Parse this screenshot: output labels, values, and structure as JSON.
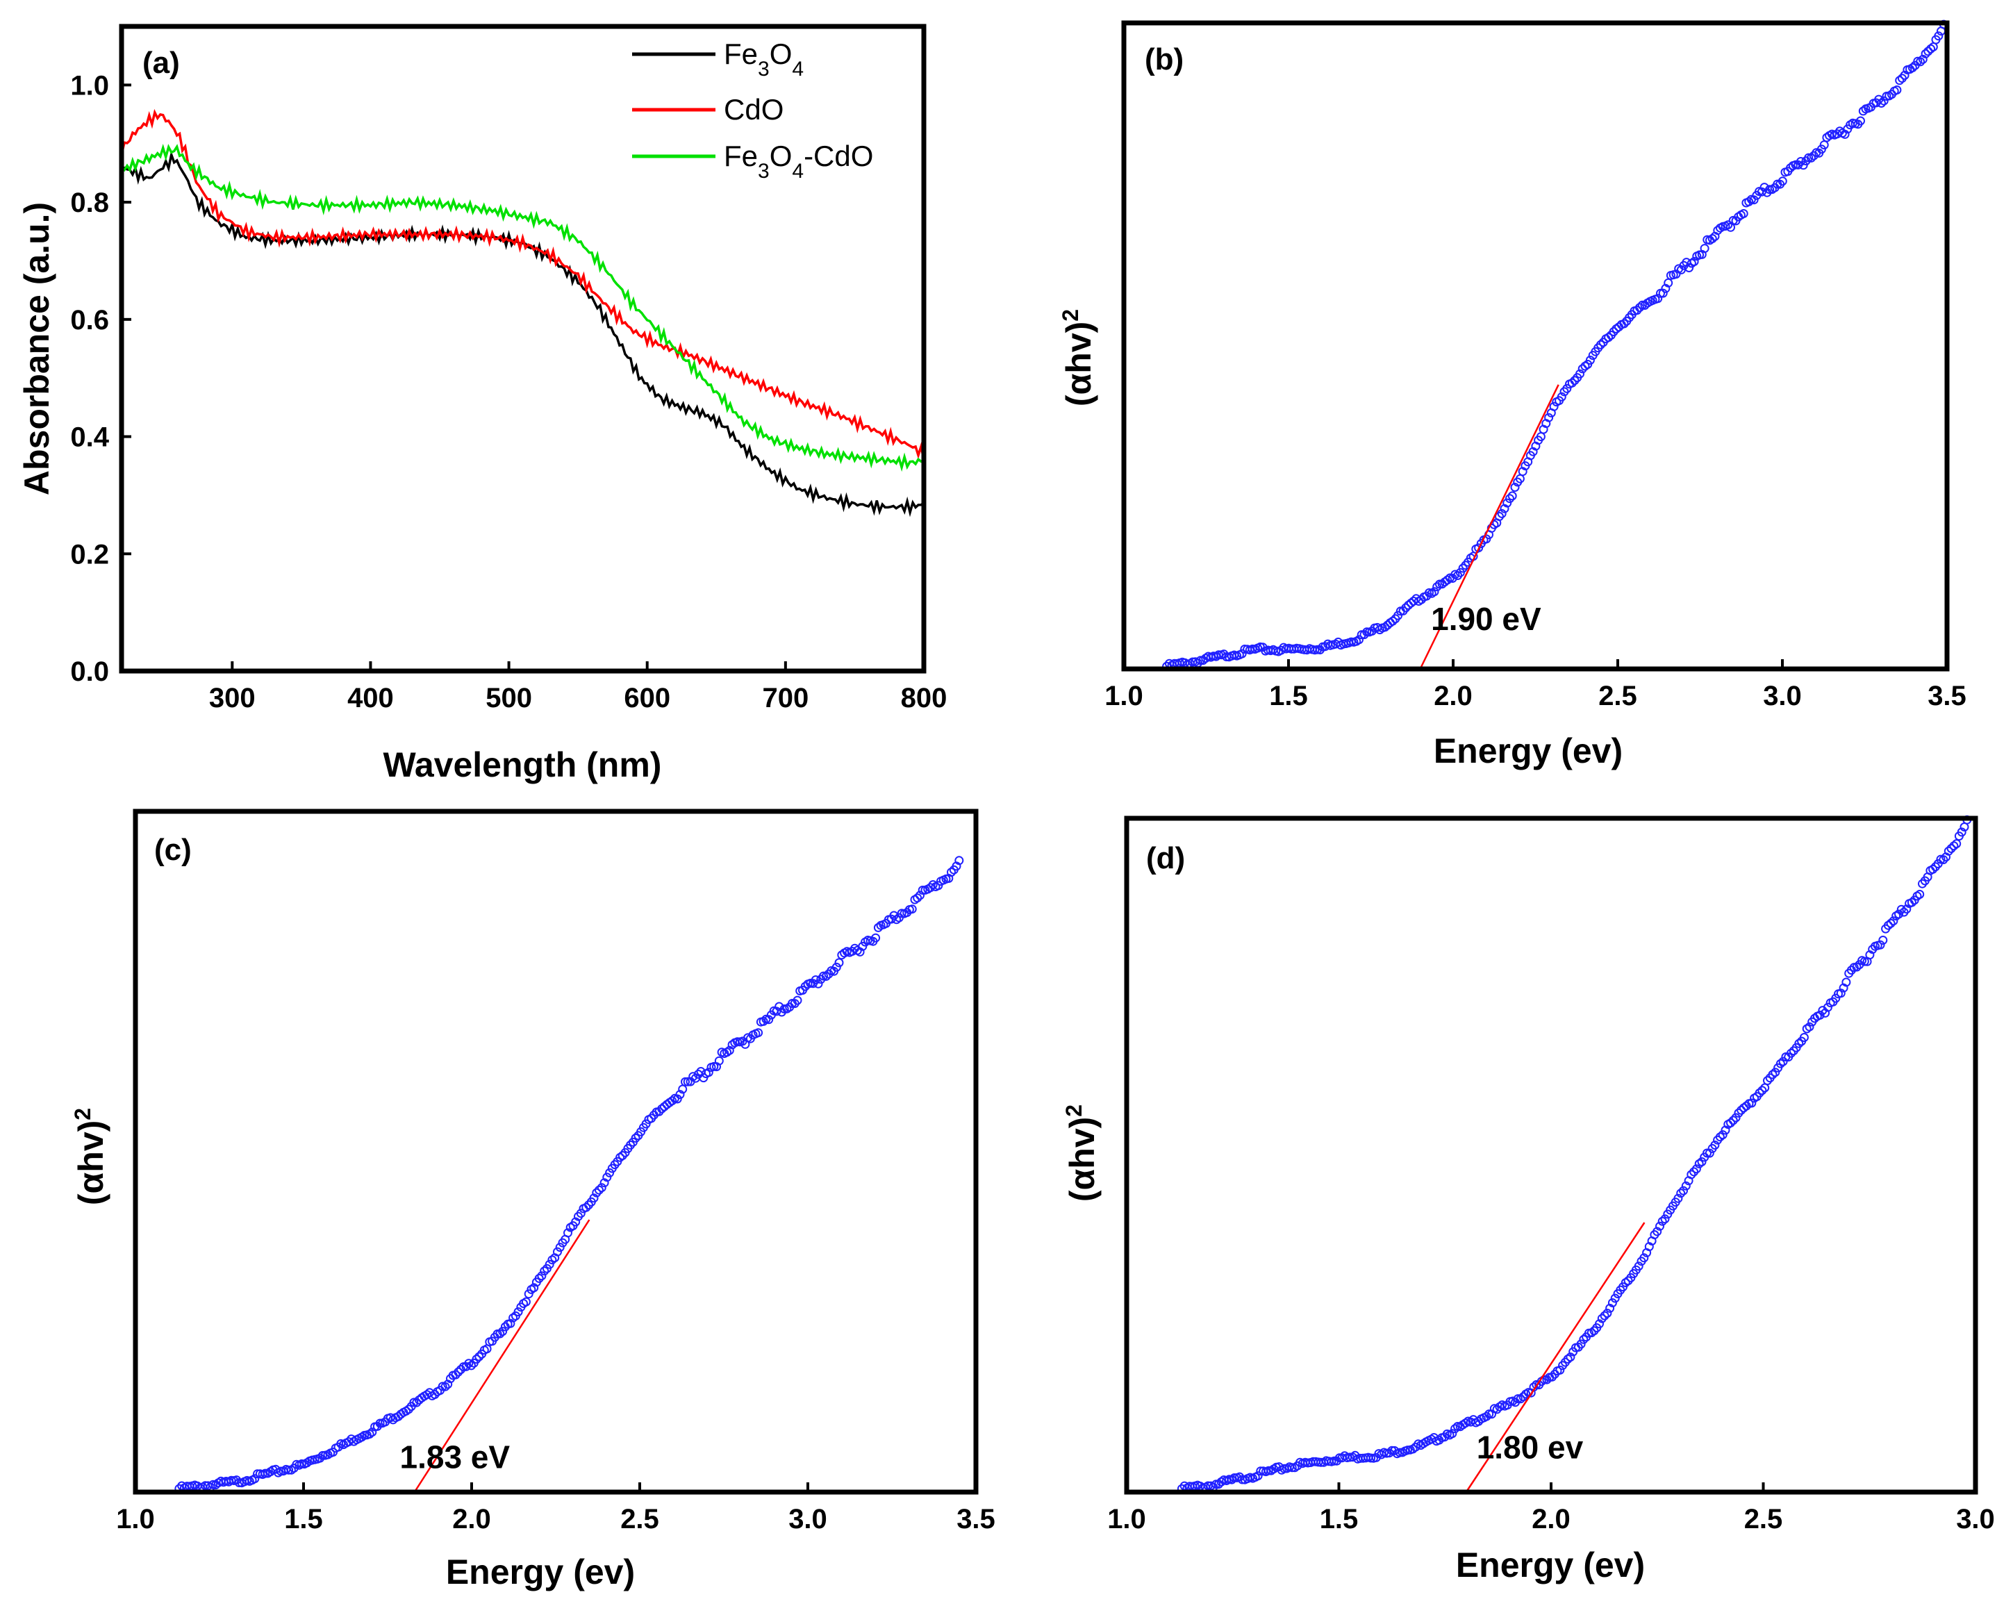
{
  "chart_data": [
    {
      "id": "a",
      "type": "line",
      "panel_label": "(a)",
      "xlabel": "Wavelength (nm)",
      "ylabel": "Absorbance (a.u.)",
      "xlim": [
        220,
        800
      ],
      "ylim": [
        0.0,
        1.1
      ],
      "x_ticks": [
        300,
        400,
        500,
        600,
        700,
        800
      ],
      "y_ticks": [
        0.0,
        0.2,
        0.4,
        0.6,
        0.8,
        1.0
      ],
      "x_tick_labels": [
        "300",
        "400",
        "500",
        "600",
        "700",
        "800"
      ],
      "y_tick_labels": [
        "0.0",
        "0.2",
        "0.4",
        "0.6",
        "0.8",
        "1.0"
      ],
      "legend_position": "top-right",
      "series": [
        {
          "name": "Fe3O4",
          "legend": {
            "base1": "Fe",
            "sub1": "3",
            "base2": "O",
            "sub2": "4",
            "rest": ""
          },
          "color": "#000000",
          "points": [
            [
              220,
              0.86
            ],
            [
              230,
              0.85
            ],
            [
              240,
              0.84
            ],
            [
              250,
              0.86
            ],
            [
              258,
              0.875
            ],
            [
              265,
              0.85
            ],
            [
              275,
              0.8
            ],
            [
              290,
              0.765
            ],
            [
              310,
              0.74
            ],
            [
              330,
              0.735
            ],
            [
              360,
              0.735
            ],
            [
              400,
              0.74
            ],
            [
              430,
              0.745
            ],
            [
              460,
              0.745
            ],
            [
              490,
              0.74
            ],
            [
              510,
              0.73
            ],
            [
              530,
              0.705
            ],
            [
              550,
              0.665
            ],
            [
              565,
              0.62
            ],
            [
              580,
              0.56
            ],
            [
              595,
              0.5
            ],
            [
              610,
              0.465
            ],
            [
              625,
              0.45
            ],
            [
              640,
              0.44
            ],
            [
              655,
              0.42
            ],
            [
              670,
              0.38
            ],
            [
              690,
              0.34
            ],
            [
              710,
              0.31
            ],
            [
              730,
              0.295
            ],
            [
              750,
              0.285
            ],
            [
              770,
              0.28
            ],
            [
              790,
              0.28
            ],
            [
              800,
              0.285
            ]
          ]
        },
        {
          "name": "CdO",
          "legend": {
            "base1": "CdO",
            "sub1": "",
            "base2": "",
            "sub2": "",
            "rest": ""
          },
          "color": "#ff0000",
          "points": [
            [
              220,
              0.89
            ],
            [
              230,
              0.92
            ],
            [
              240,
              0.94
            ],
            [
              248,
              0.95
            ],
            [
              255,
              0.935
            ],
            [
              262,
              0.91
            ],
            [
              275,
              0.83
            ],
            [
              290,
              0.78
            ],
            [
              310,
              0.75
            ],
            [
              330,
              0.74
            ],
            [
              360,
              0.74
            ],
            [
              400,
              0.745
            ],
            [
              430,
              0.745
            ],
            [
              460,
              0.745
            ],
            [
              490,
              0.74
            ],
            [
              510,
              0.73
            ],
            [
              530,
              0.71
            ],
            [
              550,
              0.675
            ],
            [
              570,
              0.625
            ],
            [
              590,
              0.58
            ],
            [
              610,
              0.555
            ],
            [
              630,
              0.54
            ],
            [
              650,
              0.52
            ],
            [
              680,
              0.49
            ],
            [
              710,
              0.46
            ],
            [
              740,
              0.435
            ],
            [
              770,
              0.405
            ],
            [
              790,
              0.385
            ],
            [
              800,
              0.37
            ]
          ]
        },
        {
          "name": "Fe3O4-CdO",
          "legend": {
            "base1": "Fe",
            "sub1": "3",
            "base2": "O",
            "sub2": "4",
            "rest": "-CdO"
          },
          "color": "#00e000",
          "points": [
            [
              220,
              0.855
            ],
            [
              230,
              0.865
            ],
            [
              240,
              0.875
            ],
            [
              250,
              0.885
            ],
            [
              260,
              0.89
            ],
            [
              270,
              0.86
            ],
            [
              290,
              0.825
            ],
            [
              310,
              0.81
            ],
            [
              330,
              0.8
            ],
            [
              360,
              0.795
            ],
            [
              400,
              0.795
            ],
            [
              430,
              0.8
            ],
            [
              460,
              0.795
            ],
            [
              490,
              0.785
            ],
            [
              510,
              0.775
            ],
            [
              530,
              0.765
            ],
            [
              550,
              0.735
            ],
            [
              570,
              0.685
            ],
            [
              590,
              0.625
            ],
            [
              610,
              0.575
            ],
            [
              630,
              0.525
            ],
            [
              650,
              0.475
            ],
            [
              670,
              0.425
            ],
            [
              690,
              0.395
            ],
            [
              710,
              0.38
            ],
            [
              730,
              0.37
            ],
            [
              750,
              0.365
            ],
            [
              770,
              0.36
            ],
            [
              790,
              0.355
            ],
            [
              800,
              0.36
            ]
          ]
        }
      ]
    },
    {
      "id": "b",
      "type": "scatter",
      "panel_label": "(b)",
      "xlabel": "Energy (ev)",
      "ylabel": {
        "base": "(αhv)",
        "sup": "2"
      },
      "xlim": [
        1.0,
        3.5
      ],
      "ylim": [
        0,
        1.0
      ],
      "x_ticks": [
        1.0,
        1.5,
        2.0,
        2.5,
        3.0,
        3.5
      ],
      "x_tick_labels": [
        "1.0",
        "1.5",
        "2.0",
        "2.5",
        "3.0",
        "3.5"
      ],
      "marker_color": "#2020ff",
      "x_range": [
        1.13,
        3.49
      ],
      "curve": [
        [
          1.13,
          0.004
        ],
        [
          1.2,
          0.01
        ],
        [
          1.3,
          0.02
        ],
        [
          1.4,
          0.03
        ],
        [
          1.5,
          0.03
        ],
        [
          1.6,
          0.033
        ],
        [
          1.7,
          0.045
        ],
        [
          1.8,
          0.07
        ],
        [
          1.9,
          0.11
        ],
        [
          2.0,
          0.14
        ],
        [
          2.1,
          0.2
        ],
        [
          2.2,
          0.29
        ],
        [
          2.3,
          0.4
        ],
        [
          2.4,
          0.47
        ],
        [
          2.5,
          0.53
        ],
        [
          2.6,
          0.57
        ],
        [
          2.7,
          0.62
        ],
        [
          2.8,
          0.67
        ],
        [
          2.9,
          0.72
        ],
        [
          3.0,
          0.76
        ],
        [
          3.1,
          0.8
        ],
        [
          3.2,
          0.84
        ],
        [
          3.3,
          0.88
        ],
        [
          3.4,
          0.93
        ],
        [
          3.49,
          0.99
        ]
      ],
      "fit_line": {
        "color": "#ff0000",
        "from": [
          1.9,
          0.0
        ],
        "to": [
          2.32,
          0.44
        ]
      },
      "band_gap_label": "1.90 eV",
      "band_gap_label_anchor": [
        2.1,
        0.06
      ]
    },
    {
      "id": "c",
      "type": "scatter",
      "panel_label": "(c)",
      "xlabel": "Energy (ev)",
      "ylabel": {
        "base": "(αhv)",
        "sup": "2"
      },
      "xlim": [
        1.0,
        3.5
      ],
      "ylim": [
        0,
        1.0
      ],
      "x_ticks": [
        1.0,
        1.5,
        2.0,
        2.5,
        3.0,
        3.5
      ],
      "x_tick_labels": [
        "1.0",
        "1.5",
        "2.0",
        "2.5",
        "3.0",
        "3.5"
      ],
      "marker_color": "#2020ff",
      "x_range": [
        1.13,
        3.45
      ],
      "curve": [
        [
          1.13,
          0.005
        ],
        [
          1.3,
          0.015
        ],
        [
          1.5,
          0.04
        ],
        [
          1.7,
          0.09
        ],
        [
          1.9,
          0.15
        ],
        [
          2.0,
          0.19
        ],
        [
          2.1,
          0.24
        ],
        [
          2.2,
          0.31
        ],
        [
          2.3,
          0.39
        ],
        [
          2.4,
          0.46
        ],
        [
          2.5,
          0.53
        ],
        [
          2.6,
          0.58
        ],
        [
          2.7,
          0.62
        ],
        [
          2.8,
          0.66
        ],
        [
          2.9,
          0.7
        ],
        [
          3.0,
          0.74
        ],
        [
          3.1,
          0.78
        ],
        [
          3.2,
          0.82
        ],
        [
          3.3,
          0.86
        ],
        [
          3.4,
          0.9
        ],
        [
          3.45,
          0.92
        ]
      ],
      "fit_line": {
        "color": "#ff0000",
        "from": [
          1.83,
          0.0
        ],
        "to": [
          2.35,
          0.4
        ]
      },
      "band_gap_label": "1.83 eV",
      "band_gap_label_anchor": [
        1.95,
        0.035
      ]
    },
    {
      "id": "d",
      "type": "scatter",
      "panel_label": "(d)",
      "xlabel": "Energy (ev)",
      "ylabel": {
        "base": "(αhv)",
        "sup": "2"
      },
      "xlim": [
        1.0,
        3.0
      ],
      "ylim": [
        0,
        1.0
      ],
      "x_ticks": [
        1.0,
        1.5,
        2.0,
        2.5,
        3.0
      ],
      "x_tick_labels": [
        "1.0",
        "1.5",
        "2.0",
        "2.5",
        "3.0"
      ],
      "marker_color": "#2020ff",
      "x_range": [
        1.13,
        2.98
      ],
      "curve": [
        [
          1.13,
          0.005
        ],
        [
          1.2,
          0.01
        ],
        [
          1.3,
          0.025
        ],
        [
          1.4,
          0.04
        ],
        [
          1.5,
          0.05
        ],
        [
          1.6,
          0.055
        ],
        [
          1.7,
          0.07
        ],
        [
          1.8,
          0.1
        ],
        [
          1.9,
          0.13
        ],
        [
          2.0,
          0.17
        ],
        [
          2.1,
          0.24
        ],
        [
          2.2,
          0.33
        ],
        [
          2.3,
          0.44
        ],
        [
          2.4,
          0.53
        ],
        [
          2.5,
          0.6
        ],
        [
          2.6,
          0.68
        ],
        [
          2.7,
          0.76
        ],
        [
          2.8,
          0.84
        ],
        [
          2.9,
          0.92
        ],
        [
          2.98,
          0.99
        ]
      ],
      "fit_line": {
        "color": "#ff0000",
        "from": [
          1.8,
          0.0
        ],
        "to": [
          2.22,
          0.4
        ]
      },
      "band_gap_label": "1.80 ev",
      "band_gap_label_anchor": [
        1.95,
        0.05
      ]
    }
  ]
}
